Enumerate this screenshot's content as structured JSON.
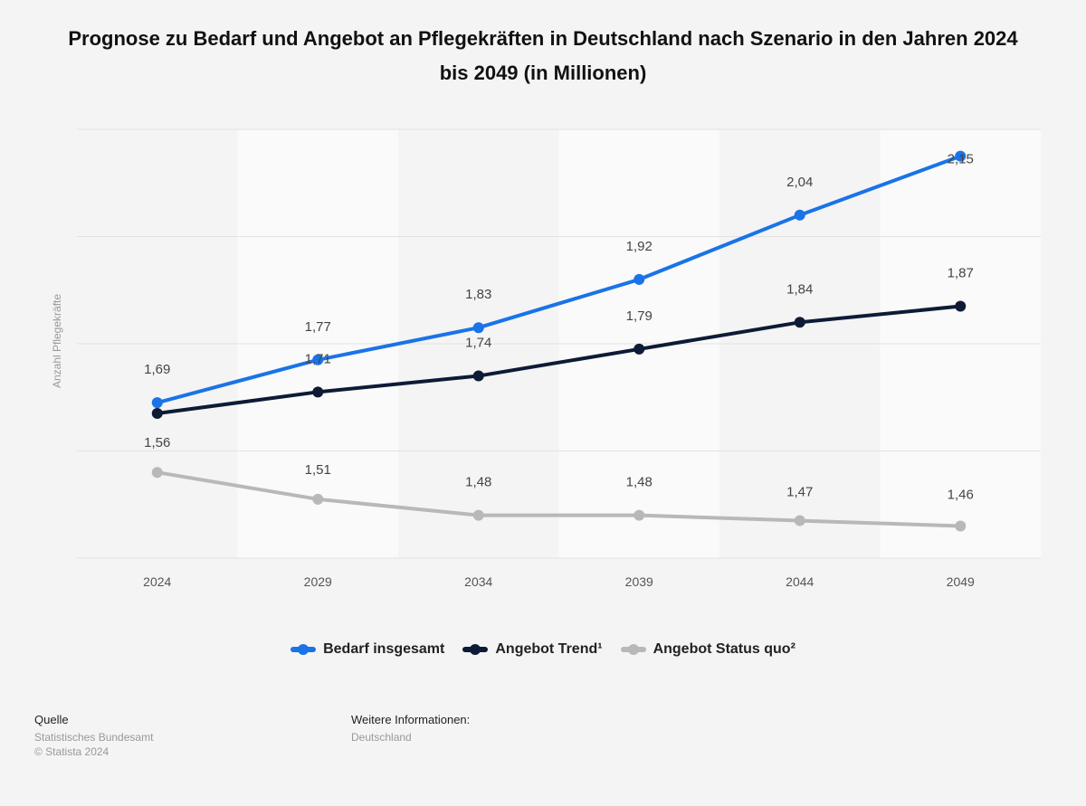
{
  "title": "Prognose zu Bedarf und Angebot an Pflegekräften in Deutschland nach Szenario in den Jahren 2024 bis 2049 (in Millionen)",
  "chart_data": {
    "type": "line",
    "title": "Prognose zu Bedarf und Angebot an Pflegekräften in Deutschland nach Szenario in den Jahren 2024 bis 2049 (in Millionen)",
    "xlabel": "",
    "ylabel": "Anzahl Pflegekräfte",
    "categories": [
      "2024",
      "2029",
      "2034",
      "2039",
      "2044",
      "2049"
    ],
    "ylim": [
      1.4,
      2.2
    ],
    "grid": true,
    "legend": "bottom",
    "series": [
      {
        "name": "Bedarf insgesamt",
        "color": "#1a73e8",
        "values": [
          1.69,
          1.77,
          1.83,
          1.92,
          2.04,
          2.15
        ],
        "labels": [
          "1,69",
          "1,77",
          "1,83",
          "1,92",
          "2,04",
          "2,15"
        ]
      },
      {
        "name": "Angebot Trend¹",
        "color": "#0d1b36",
        "values": [
          1.67,
          1.71,
          1.74,
          1.79,
          1.84,
          1.87
        ],
        "labels": [
          "",
          "1,71",
          "1,74",
          "1,79",
          "1,84",
          "1,87"
        ]
      },
      {
        "name": "Angebot Status quo²",
        "color": "#b8b8b8",
        "values": [
          1.56,
          1.51,
          1.48,
          1.48,
          1.47,
          1.46
        ],
        "labels": [
          "1,56",
          "1,51",
          "1,48",
          "1,48",
          "1,47",
          "1,46"
        ]
      }
    ]
  },
  "footer": {
    "source_heading": "Quelle",
    "source_lines": [
      "Statistisches Bundesamt",
      "© Statista 2024"
    ],
    "info_heading": "Weitere Informationen:",
    "info_lines": [
      "Deutschland"
    ]
  }
}
